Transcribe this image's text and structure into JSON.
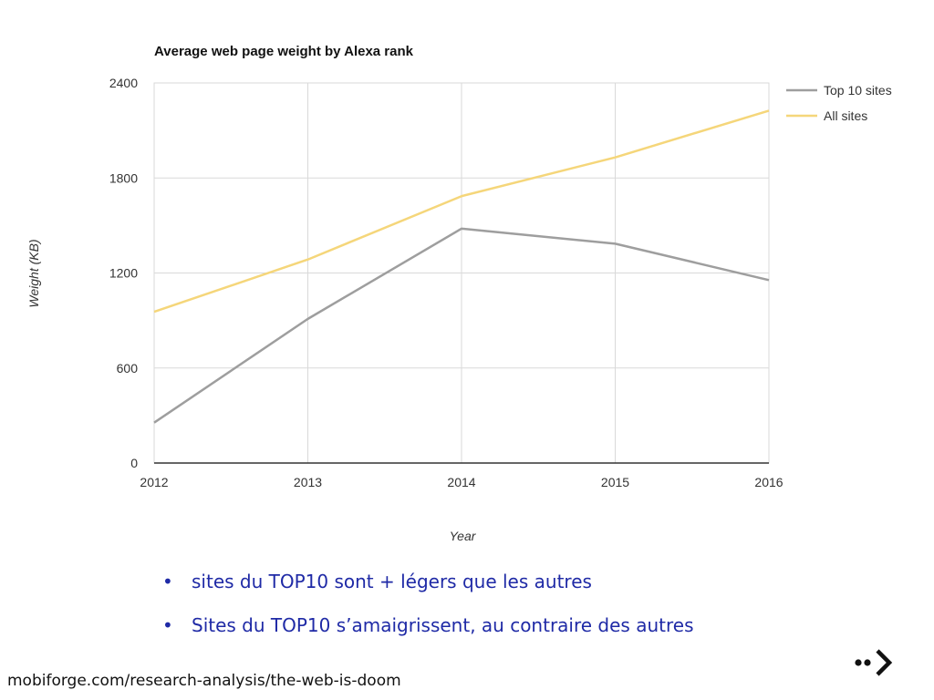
{
  "chart_data": {
    "type": "line",
    "title": "Average web page weight by Alexa rank",
    "xlabel": "Year",
    "ylabel": "Weight (KB)",
    "x": [
      "2012",
      "2013",
      "2014",
      "2015",
      "2016"
    ],
    "y_ticks": [
      "0",
      "600",
      "1200",
      "1800",
      "2400"
    ],
    "ylim": [
      0,
      2400
    ],
    "grid": true,
    "legend": "right",
    "series": [
      {
        "name": "Top 10 sites",
        "values": [
          255,
          910,
          1480,
          1385,
          1155
        ],
        "color": "#9e9e9e"
      },
      {
        "name": "All sites",
        "values": [
          955,
          1285,
          1685,
          1930,
          2225
        ],
        "color": "#f5d67a"
      }
    ]
  },
  "bullets": [
    "sites du TOP10 sont + légers que les autres",
    "Sites du TOP10 s’amaigrissent, au contraire des autres"
  ],
  "source": "mobiforge.com/research-analysis/the-web-is-doom",
  "logo_icon": "dot-dot-arrow-icon",
  "colors": {
    "bullet_text": "#1f2aa6",
    "grid": "#d9d9d9",
    "axis": "#333333"
  }
}
